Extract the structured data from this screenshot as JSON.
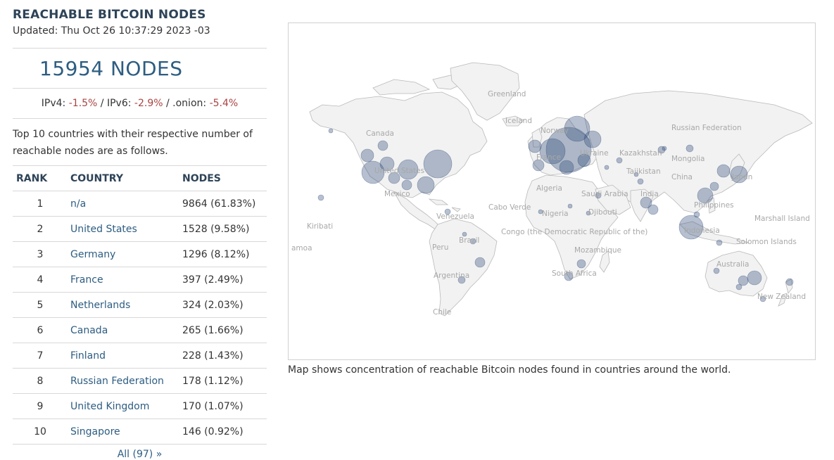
{
  "header": {
    "title": "REACHABLE BITCOIN NODES",
    "updated": "Updated: Thu Oct 26 10:37:29 2023 -03"
  },
  "summary": {
    "nodes_text": "15954 NODES",
    "ipv4_label": "IPv4: ",
    "ipv4_value": "-1.5%",
    "sep1": " / IPv6: ",
    "ipv6_value": "-2.9%",
    "sep2": " / .onion: ",
    "onion_value": "-5.4%"
  },
  "description": "Top 10 countries with their respective number of reachable nodes are as follows.",
  "table": {
    "headers": [
      "RANK",
      "COUNTRY",
      "NODES"
    ],
    "rows": [
      {
        "rank": "1",
        "country": "n/a",
        "nodes": "9864 (61.83%)"
      },
      {
        "rank": "2",
        "country": "United States",
        "nodes": "1528 (9.58%)"
      },
      {
        "rank": "3",
        "country": "Germany",
        "nodes": "1296 (8.12%)"
      },
      {
        "rank": "4",
        "country": "France",
        "nodes": "397 (2.49%)"
      },
      {
        "rank": "5",
        "country": "Netherlands",
        "nodes": "324 (2.03%)"
      },
      {
        "rank": "6",
        "country": "Canada",
        "nodes": "265 (1.66%)"
      },
      {
        "rank": "7",
        "country": "Finland",
        "nodes": "228 (1.43%)"
      },
      {
        "rank": "8",
        "country": "Russian Federation",
        "nodes": "178 (1.12%)"
      },
      {
        "rank": "9",
        "country": "United Kingdom",
        "nodes": "170 (1.07%)"
      },
      {
        "rank": "10",
        "country": "Singapore",
        "nodes": "146 (0.92%)"
      }
    ]
  },
  "all_link": "All (97) »",
  "map": {
    "caption": "Map shows concentration of reachable Bitcoin nodes found in countries around the world.",
    "labels": [
      "Greenland",
      "Iceland",
      "Norway",
      "Russian Federation",
      "Canada",
      "France",
      "Ukraine",
      "Kazakhstan",
      "Mongolia",
      "United States",
      "Tajikistan",
      "China",
      "Japan",
      "Mexico",
      "Algeria",
      "Saudi Arabia",
      "India",
      "Cabo Verde",
      "Nigeria",
      "Djibouti",
      "Philippines",
      "Marshall Island",
      "Kiribati",
      "Venezuela",
      "Congo (the Democratic Republic of the)",
      "Indonesia",
      "Brazil",
      "Solomon Islands",
      "amoa",
      "Peru",
      "Mozambique",
      "Australia",
      "Argentina",
      "South Africa",
      "New Zealand",
      "Chile"
    ],
    "land_color": "#f2f2f2",
    "marker_color": "#2e4a78"
  }
}
